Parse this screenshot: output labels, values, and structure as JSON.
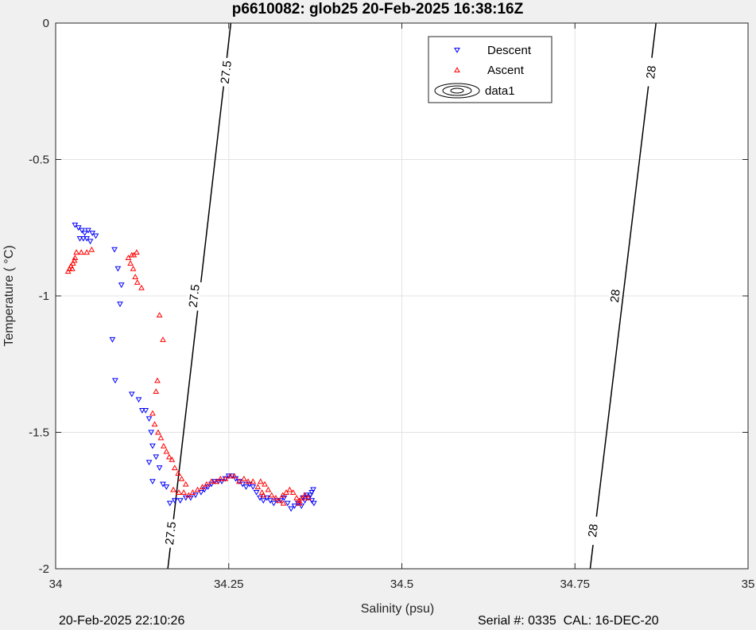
{
  "chart_data": {
    "type": "scatter",
    "title": "p6610082: glob25 20-Feb-2025 16:38:16Z",
    "xlabel": "Salinity (psu)",
    "ylabel": "Temperature (   °C)",
    "xlim": [
      34,
      35
    ],
    "ylim": [
      -2,
      0
    ],
    "xticks": [
      "34",
      "34.25",
      "34.5",
      "34.75",
      "35"
    ],
    "yticks": [
      "0",
      "-0.5",
      "-1",
      "-1.5",
      "-2"
    ],
    "grid": true,
    "legend_position": "top-right",
    "legend": [
      "Descent",
      "Ascent",
      "data1"
    ],
    "series": [
      {
        "name": "Descent",
        "marker": "triangle-down",
        "color": "#0000ff",
        "points": [
          [
            34.028,
            -0.74
          ],
          [
            34.033,
            -0.75
          ],
          [
            34.038,
            -0.76
          ],
          [
            34.042,
            -0.77
          ],
          [
            34.047,
            -0.76
          ],
          [
            34.053,
            -0.77
          ],
          [
            34.058,
            -0.78
          ],
          [
            34.035,
            -0.79
          ],
          [
            34.04,
            -0.79
          ],
          [
            34.045,
            -0.79
          ],
          [
            34.05,
            -0.8
          ],
          [
            34.085,
            -0.83
          ],
          [
            34.09,
            -0.9
          ],
          [
            34.095,
            -0.96
          ],
          [
            34.093,
            -1.03
          ],
          [
            34.082,
            -1.16
          ],
          [
            34.086,
            -1.31
          ],
          [
            34.11,
            -1.36
          ],
          [
            34.12,
            -1.38
          ],
          [
            34.125,
            -1.42
          ],
          [
            34.13,
            -1.42
          ],
          [
            34.135,
            -1.45
          ],
          [
            34.138,
            -1.5
          ],
          [
            34.14,
            -1.55
          ],
          [
            34.135,
            -1.61
          ],
          [
            34.145,
            -1.59
          ],
          [
            34.15,
            -1.63
          ],
          [
            34.14,
            -1.68
          ],
          [
            34.155,
            -1.69
          ],
          [
            34.16,
            -1.7
          ],
          [
            34.165,
            -1.76
          ],
          [
            34.172,
            -1.75
          ],
          [
            34.18,
            -1.75
          ],
          [
            34.188,
            -1.74
          ],
          [
            34.195,
            -1.74
          ],
          [
            34.202,
            -1.73
          ],
          [
            34.21,
            -1.72
          ],
          [
            34.215,
            -1.71
          ],
          [
            34.22,
            -1.7
          ],
          [
            34.225,
            -1.69
          ],
          [
            34.23,
            -1.68
          ],
          [
            34.235,
            -1.68
          ],
          [
            34.24,
            -1.68
          ],
          [
            34.245,
            -1.67
          ],
          [
            34.25,
            -1.66
          ],
          [
            34.255,
            -1.66
          ],
          [
            34.26,
            -1.67
          ],
          [
            34.265,
            -1.68
          ],
          [
            34.27,
            -1.69
          ],
          [
            34.275,
            -1.7
          ],
          [
            34.28,
            -1.69
          ],
          [
            34.285,
            -1.7
          ],
          [
            34.29,
            -1.72
          ],
          [
            34.295,
            -1.74
          ],
          [
            34.3,
            -1.75
          ],
          [
            34.305,
            -1.74
          ],
          [
            34.31,
            -1.75
          ],
          [
            34.315,
            -1.76
          ],
          [
            34.32,
            -1.75
          ],
          [
            34.325,
            -1.75
          ],
          [
            34.33,
            -1.74
          ],
          [
            34.335,
            -1.76
          ],
          [
            34.34,
            -1.78
          ],
          [
            34.345,
            -1.77
          ],
          [
            34.35,
            -1.76
          ],
          [
            34.355,
            -1.77
          ],
          [
            34.36,
            -1.75
          ],
          [
            34.365,
            -1.74
          ],
          [
            34.368,
            -1.73
          ],
          [
            34.37,
            -1.72
          ],
          [
            34.372,
            -1.71
          ],
          [
            34.37,
            -1.75
          ],
          [
            34.373,
            -1.76
          ],
          [
            34.362,
            -1.73
          ],
          [
            34.357,
            -1.74
          ]
        ]
      },
      {
        "name": "Ascent",
        "marker": "triangle-up",
        "color": "#ff0000",
        "points": [
          [
            34.018,
            -0.91
          ],
          [
            34.02,
            -0.9
          ],
          [
            34.022,
            -0.89
          ],
          [
            34.024,
            -0.9
          ],
          [
            34.025,
            -0.88
          ],
          [
            34.027,
            -0.87
          ],
          [
            34.028,
            -0.86
          ],
          [
            34.03,
            -0.84
          ],
          [
            34.037,
            -0.84
          ],
          [
            34.045,
            -0.84
          ],
          [
            34.052,
            -0.83
          ],
          [
            34.105,
            -0.86
          ],
          [
            34.11,
            -0.85
          ],
          [
            34.113,
            -0.85
          ],
          [
            34.117,
            -0.84
          ],
          [
            34.108,
            -0.88
          ],
          [
            34.112,
            -0.9
          ],
          [
            34.115,
            -0.93
          ],
          [
            34.118,
            -0.95
          ],
          [
            34.124,
            -0.97
          ],
          [
            34.15,
            -1.07
          ],
          [
            34.155,
            -1.16
          ],
          [
            34.147,
            -1.31
          ],
          [
            34.145,
            -1.35
          ],
          [
            34.14,
            -1.43
          ],
          [
            34.143,
            -1.47
          ],
          [
            34.148,
            -1.5
          ],
          [
            34.152,
            -1.52
          ],
          [
            34.156,
            -1.55
          ],
          [
            34.16,
            -1.57
          ],
          [
            34.164,
            -1.59
          ],
          [
            34.168,
            -1.6
          ],
          [
            34.172,
            -1.63
          ],
          [
            34.177,
            -1.65
          ],
          [
            34.182,
            -1.67
          ],
          [
            34.188,
            -1.69
          ],
          [
            34.17,
            -1.71
          ],
          [
            34.178,
            -1.72
          ],
          [
            34.185,
            -1.72
          ],
          [
            34.192,
            -1.73
          ],
          [
            34.198,
            -1.72
          ],
          [
            34.205,
            -1.71
          ],
          [
            34.212,
            -1.7
          ],
          [
            34.218,
            -1.69
          ],
          [
            34.225,
            -1.68
          ],
          [
            34.232,
            -1.68
          ],
          [
            34.238,
            -1.67
          ],
          [
            34.245,
            -1.67
          ],
          [
            34.252,
            -1.66
          ],
          [
            34.258,
            -1.66
          ],
          [
            34.265,
            -1.68
          ],
          [
            34.272,
            -1.67
          ],
          [
            34.278,
            -1.68
          ],
          [
            34.285,
            -1.68
          ],
          [
            34.292,
            -1.7
          ],
          [
            34.298,
            -1.72
          ],
          [
            34.302,
            -1.69
          ],
          [
            34.307,
            -1.71
          ],
          [
            34.312,
            -1.73
          ],
          [
            34.318,
            -1.74
          ],
          [
            34.323,
            -1.75
          ],
          [
            34.328,
            -1.73
          ],
          [
            34.333,
            -1.72
          ],
          [
            34.338,
            -1.71
          ],
          [
            34.343,
            -1.72
          ],
          [
            34.348,
            -1.74
          ],
          [
            34.352,
            -1.75
          ],
          [
            34.356,
            -1.74
          ],
          [
            34.36,
            -1.73
          ],
          [
            34.365,
            -1.74
          ],
          [
            34.352,
            -1.76
          ],
          [
            34.329,
            -1.76
          ],
          [
            34.3,
            -1.73
          ],
          [
            34.296,
            -1.68
          ]
        ]
      }
    ],
    "contours": [
      {
        "level": "27.5",
        "points": [
          [
            34.253,
            0
          ],
          [
            34.162,
            -2
          ]
        ],
        "label_points": [
          [
            34.246,
            -0.18
          ],
          [
            34.2,
            -1.0
          ],
          [
            34.166,
            -1.87
          ]
        ]
      },
      {
        "level": "28",
        "points": [
          [
            34.867,
            0
          ],
          [
            34.772,
            -2
          ]
        ],
        "label_points": [
          [
            34.86,
            -0.18
          ],
          [
            34.808,
            -1.0
          ],
          [
            34.776,
            -1.86
          ]
        ]
      }
    ]
  },
  "footer": {
    "timestamp": "20-Feb-2025 22:10:26",
    "serial": "Serial #: 0335  CAL: 16-DEC-20"
  },
  "colors": {
    "descent": "#0000ff",
    "ascent": "#ff0000",
    "axes_background": "#ffffff",
    "figure_background": "#f0f0f0",
    "grid": "#e6e6e6"
  }
}
